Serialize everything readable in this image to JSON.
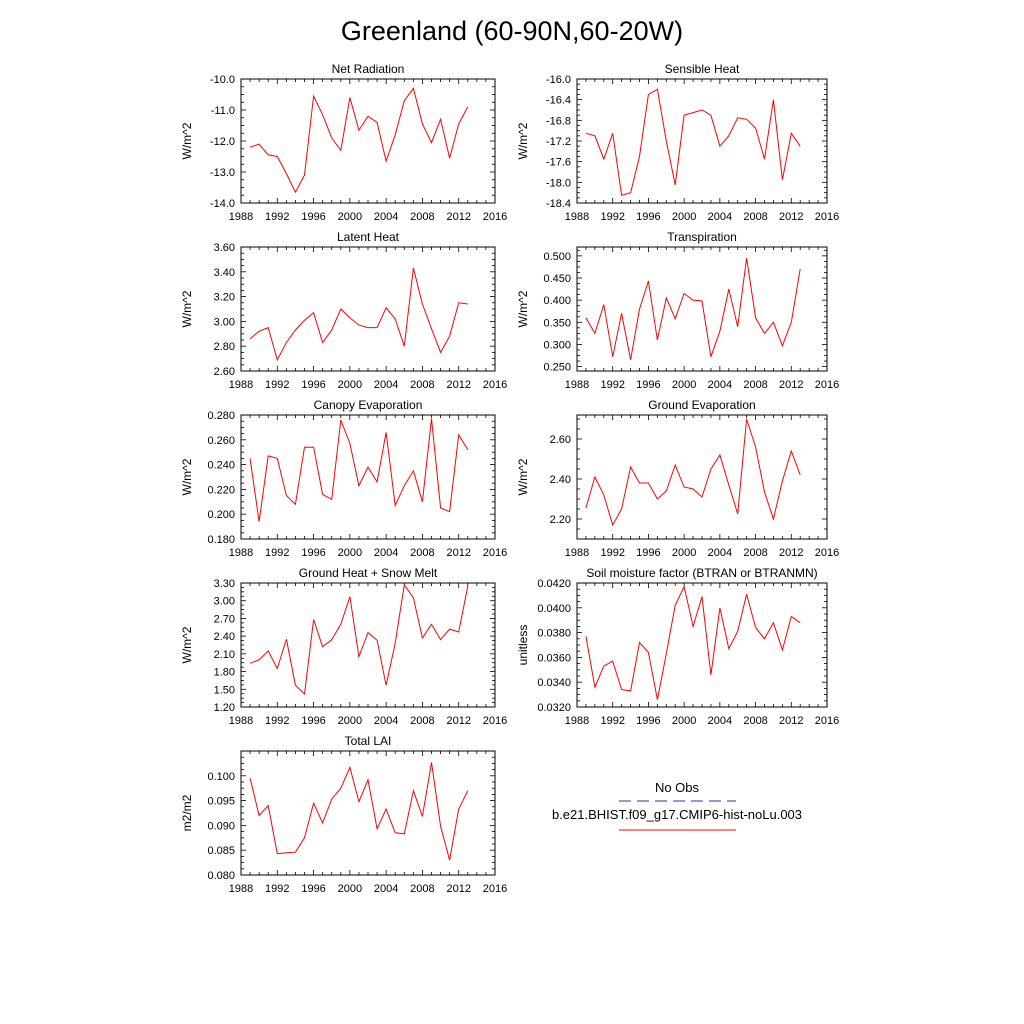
{
  "page_title": "Greenland (60-90N,60-20W)",
  "colors": {
    "model_line": "#ff0000",
    "obs_line": "#5a5ab4",
    "axis": "#000000"
  },
  "legend": {
    "obs_label": "No Obs",
    "model_label": "b.e21.BHIST.f09_g17.CMIP6-hist-noLu.003"
  },
  "chart_data": [
    {
      "type": "line",
      "title": "Net Radiation",
      "ylabel": "W/m^2",
      "xlim": [
        1988,
        2016
      ],
      "ylim": [
        -14.0,
        -10.0
      ],
      "xticks": [
        "1988",
        "1992",
        "1996",
        "2000",
        "2004",
        "2008",
        "2012",
        "2016"
      ],
      "yticks": [
        "-10.0",
        "-11.0",
        "-12.0",
        "-13.0",
        "-14.0"
      ],
      "x": [
        1989,
        1990,
        1991,
        1992,
        1993,
        1994,
        1995,
        1996,
        1997,
        1998,
        1999,
        2000,
        2001,
        2002,
        2003,
        2004,
        2005,
        2006,
        2007,
        2008,
        2009,
        2010,
        2011,
        2012,
        2013
      ],
      "series": [
        {
          "values": [
            -12.2,
            -12.1,
            -12.45,
            -12.5,
            -13.05,
            -13.65,
            -13.1,
            -10.55,
            -11.15,
            -11.9,
            -12.3,
            -10.6,
            -11.65,
            -11.2,
            -11.4,
            -12.65,
            -11.8,
            -10.7,
            -10.3,
            -11.45,
            -12.05,
            -11.3,
            -12.55,
            -11.45,
            -10.9
          ]
        }
      ]
    },
    {
      "type": "line",
      "title": "Sensible Heat",
      "ylabel": "W/m^2",
      "xlim": [
        1988,
        2016
      ],
      "ylim": [
        -18.4,
        -16.0
      ],
      "xticks": [
        "1988",
        "1992",
        "1996",
        "2000",
        "2004",
        "2008",
        "2012",
        "2016"
      ],
      "yticks": [
        "-16.0",
        "-16.4",
        "-16.8",
        "-17.2",
        "-17.6",
        "-18.0",
        "-18.4"
      ],
      "x": [
        1989,
        1990,
        1991,
        1992,
        1993,
        1994,
        1995,
        1996,
        1997,
        1998,
        1999,
        2000,
        2001,
        2002,
        2003,
        2004,
        2005,
        2006,
        2007,
        2008,
        2009,
        2010,
        2011,
        2012,
        2013
      ],
      "series": [
        {
          "values": [
            -17.05,
            -17.1,
            -17.55,
            -17.05,
            -18.25,
            -18.2,
            -17.5,
            -16.3,
            -16.2,
            -17.2,
            -18.05,
            -16.7,
            -16.65,
            -16.6,
            -16.7,
            -17.3,
            -17.1,
            -16.75,
            -16.78,
            -16.95,
            -17.55,
            -16.4,
            -17.95,
            -17.05,
            -17.3
          ]
        }
      ]
    },
    {
      "type": "line",
      "title": "Latent Heat",
      "ylabel": "W/m^2",
      "xlim": [
        1988,
        2016
      ],
      "ylim": [
        2.6,
        3.6
      ],
      "xticks": [
        "1988",
        "1992",
        "1996",
        "2000",
        "2004",
        "2008",
        "2012",
        "2016"
      ],
      "yticks": [
        "3.60",
        "3.40",
        "3.20",
        "3.00",
        "2.80",
        "2.60"
      ],
      "x": [
        1989,
        1990,
        1991,
        1992,
        1993,
        1994,
        1995,
        1996,
        1997,
        1998,
        1999,
        2000,
        2001,
        2002,
        2003,
        2004,
        2005,
        2006,
        2007,
        2008,
        2009,
        2010,
        2011,
        2012,
        2013
      ],
      "series": [
        {
          "values": [
            2.86,
            2.92,
            2.95,
            2.69,
            2.83,
            2.93,
            3.01,
            3.07,
            2.83,
            2.93,
            3.1,
            3.03,
            2.97,
            2.95,
            2.95,
            3.11,
            3.02,
            2.8,
            3.43,
            3.14,
            2.94,
            2.75,
            2.88,
            3.15,
            3.14
          ]
        }
      ]
    },
    {
      "type": "line",
      "title": "Transpiration",
      "ylabel": "W/m^2",
      "xlim": [
        1988,
        2016
      ],
      "ylim": [
        0.24,
        0.52
      ],
      "xticks": [
        "1988",
        "1992",
        "1996",
        "2000",
        "2004",
        "2008",
        "2012",
        "2016"
      ],
      "yticks": [
        "0.500",
        "0.450",
        "0.400",
        "0.350",
        "0.300",
        "0.250"
      ],
      "x": [
        1989,
        1990,
        1991,
        1992,
        1993,
        1994,
        1995,
        1996,
        1997,
        1998,
        1999,
        2000,
        2001,
        2002,
        2003,
        2004,
        2005,
        2006,
        2007,
        2008,
        2009,
        2010,
        2011,
        2012,
        2013
      ],
      "series": [
        {
          "values": [
            0.36,
            0.325,
            0.39,
            0.272,
            0.37,
            0.265,
            0.38,
            0.443,
            0.31,
            0.405,
            0.358,
            0.415,
            0.4,
            0.398,
            0.272,
            0.33,
            0.425,
            0.34,
            0.495,
            0.36,
            0.325,
            0.35,
            0.297,
            0.35,
            0.47
          ]
        }
      ]
    },
    {
      "type": "line",
      "title": "Canopy Evaporation",
      "ylabel": "W/m^2",
      "xlim": [
        1988,
        2016
      ],
      "ylim": [
        0.18,
        0.28
      ],
      "xticks": [
        "1988",
        "1992",
        "1996",
        "2000",
        "2004",
        "2008",
        "2012",
        "2016"
      ],
      "yticks": [
        "0.280",
        "0.260",
        "0.240",
        "0.220",
        "0.200",
        "0.180"
      ],
      "x": [
        1989,
        1990,
        1991,
        1992,
        1993,
        1994,
        1995,
        1996,
        1997,
        1998,
        1999,
        2000,
        2001,
        2002,
        2003,
        2004,
        2005,
        2006,
        2007,
        2008,
        2009,
        2010,
        2011,
        2012,
        2013
      ],
      "series": [
        {
          "values": [
            0.245,
            0.194,
            0.247,
            0.245,
            0.215,
            0.208,
            0.254,
            0.254,
            0.216,
            0.212,
            0.276,
            0.257,
            0.223,
            0.238,
            0.226,
            0.266,
            0.207,
            0.223,
            0.235,
            0.21,
            0.277,
            0.205,
            0.202,
            0.264,
            0.252
          ]
        }
      ]
    },
    {
      "type": "line",
      "title": "Ground Evaporation",
      "ylabel": "W/m^2",
      "xlim": [
        1988,
        2016
      ],
      "ylim": [
        2.1,
        2.72
      ],
      "xticks": [
        "1988",
        "1992",
        "1996",
        "2000",
        "2004",
        "2008",
        "2012",
        "2016"
      ],
      "yticks": [
        "2.60",
        "2.40",
        "2.20"
      ],
      "x": [
        1989,
        1990,
        1991,
        1992,
        1993,
        1994,
        1995,
        1996,
        1997,
        1998,
        1999,
        2000,
        2001,
        2002,
        2003,
        2004,
        2005,
        2006,
        2007,
        2008,
        2009,
        2010,
        2011,
        2012,
        2013
      ],
      "series": [
        {
          "values": [
            2.255,
            2.41,
            2.32,
            2.17,
            2.25,
            2.46,
            2.38,
            2.38,
            2.3,
            2.34,
            2.47,
            2.36,
            2.35,
            2.31,
            2.45,
            2.52,
            2.37,
            2.225,
            2.7,
            2.56,
            2.335,
            2.2,
            2.39,
            2.54,
            2.42
          ]
        }
      ]
    },
    {
      "type": "line",
      "title": "Ground Heat + Snow Melt",
      "ylabel": "W/m^2",
      "xlim": [
        1988,
        2016
      ],
      "ylim": [
        1.2,
        3.3
      ],
      "xticks": [
        "1988",
        "1992",
        "1996",
        "2000",
        "2004",
        "2008",
        "2012",
        "2016"
      ],
      "yticks": [
        "3.30",
        "3.00",
        "2.70",
        "2.40",
        "2.10",
        "1.80",
        "1.50",
        "1.20"
      ],
      "x": [
        1989,
        1990,
        1991,
        1992,
        1993,
        1994,
        1995,
        1996,
        1997,
        1998,
        1999,
        2000,
        2001,
        2002,
        2003,
        2004,
        2005,
        2006,
        2007,
        2008,
        2009,
        2010,
        2011,
        2012,
        2013
      ],
      "series": [
        {
          "values": [
            1.94,
            2.0,
            2.15,
            1.85,
            2.35,
            1.57,
            1.42,
            2.68,
            2.22,
            2.34,
            2.6,
            3.07,
            2.05,
            2.46,
            2.33,
            1.57,
            2.28,
            3.27,
            3.05,
            2.37,
            2.6,
            2.34,
            2.52,
            2.47,
            3.25
          ]
        }
      ]
    },
    {
      "type": "line",
      "title": "Soil moisture factor (BTRAN or BTRANMN)",
      "ylabel": "unitless",
      "xlim": [
        1988,
        2016
      ],
      "ylim": [
        0.032,
        0.042
      ],
      "xticks": [
        "1988",
        "1992",
        "1996",
        "2000",
        "2004",
        "2008",
        "2012",
        "2016"
      ],
      "yticks": [
        "0.0420",
        "0.0400",
        "0.0380",
        "0.0360",
        "0.0340",
        "0.0320"
      ],
      "x": [
        1989,
        1990,
        1991,
        1992,
        1993,
        1994,
        1995,
        1996,
        1997,
        1998,
        1999,
        2000,
        2001,
        2002,
        2003,
        2004,
        2005,
        2006,
        2007,
        2008,
        2009,
        2010,
        2011,
        2012,
        2013
      ],
      "series": [
        {
          "values": [
            0.0377,
            0.0336,
            0.0353,
            0.0357,
            0.0334,
            0.0333,
            0.0372,
            0.0364,
            0.0326,
            0.0363,
            0.0402,
            0.0417,
            0.0385,
            0.0409,
            0.0346,
            0.04,
            0.0367,
            0.0381,
            0.0411,
            0.0384,
            0.0375,
            0.0388,
            0.0366,
            0.0393,
            0.0388
          ]
        }
      ]
    },
    {
      "type": "line",
      "title": "Total LAI",
      "ylabel": "m2/m2",
      "xlim": [
        1988,
        2016
      ],
      "ylim": [
        0.08,
        0.105
      ],
      "xticks": [
        "1988",
        "1992",
        "1996",
        "2000",
        "2004",
        "2008",
        "2012",
        "2016"
      ],
      "yticks": [
        "0.100",
        "0.095",
        "0.090",
        "0.085",
        "0.080"
      ],
      "x": [
        1989,
        1990,
        1991,
        1992,
        1993,
        1994,
        1995,
        1996,
        1997,
        1998,
        1999,
        2000,
        2001,
        2002,
        2003,
        2004,
        2005,
        2006,
        2007,
        2008,
        2009,
        2010,
        2011,
        2012,
        2013
      ],
      "series": [
        {
          "values": [
            0.0995,
            0.092,
            0.094,
            0.0843,
            0.0845,
            0.0846,
            0.0875,
            0.0945,
            0.0905,
            0.0953,
            0.0975,
            0.1017,
            0.0948,
            0.0992,
            0.0893,
            0.0933,
            0.0885,
            0.0883,
            0.097,
            0.0918,
            0.1027,
            0.0898,
            0.083,
            0.0933,
            0.097
          ]
        }
      ]
    }
  ]
}
